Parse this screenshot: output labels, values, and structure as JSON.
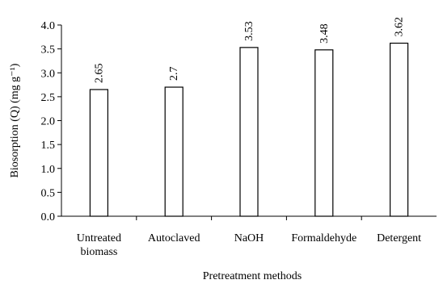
{
  "chart_data": {
    "type": "bar",
    "categories": [
      [
        "Untreated",
        "biomass"
      ],
      [
        "Autoclaved"
      ],
      [
        "NaOH"
      ],
      [
        "Formaldehyde"
      ],
      [
        "Detergent"
      ]
    ],
    "values": [
      2.65,
      2.7,
      3.53,
      3.48,
      3.62
    ],
    "data_labels": [
      "2.65",
      "2.7",
      "3.53",
      "3.48",
      "3.62"
    ],
    "xlabel": "Pretreatment methods",
    "ylabel": "Biosorption (Q) (mg g⁻¹)",
    "ylim": [
      0,
      4.0
    ],
    "yticks": [
      "0.0",
      "0.5",
      "1.0",
      "1.5",
      "2.0",
      "2.5",
      "3.0",
      "3.5",
      "4.0"
    ],
    "grid": false,
    "bar_fill": "#ffffff",
    "bar_stroke": "#000000"
  }
}
